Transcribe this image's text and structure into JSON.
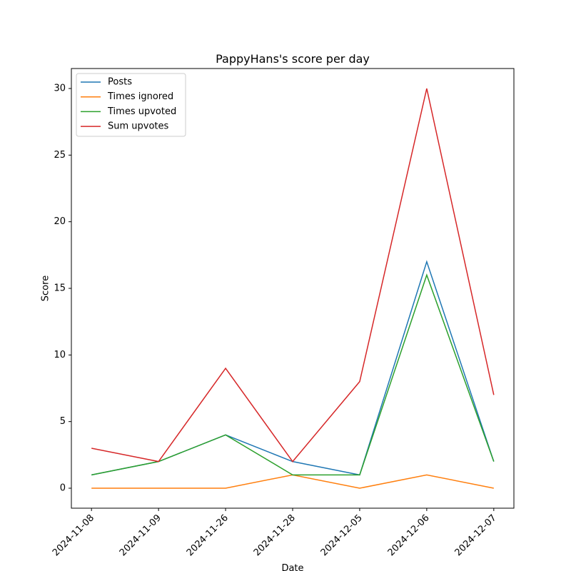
{
  "chart_data": {
    "type": "line",
    "title": "PappyHans's score per day",
    "xlabel": "Date",
    "ylabel": "Score",
    "categories": [
      "2024-11-08",
      "2024-11-09",
      "2024-11-26",
      "2024-11-28",
      "2024-12-05",
      "2024-12-06",
      "2024-12-07"
    ],
    "series": [
      {
        "name": "Posts",
        "color": "#1f77b4",
        "values": [
          1,
          2,
          4,
          2,
          1,
          17,
          2
        ]
      },
      {
        "name": "Times ignored",
        "color": "#ff7f0e",
        "values": [
          0,
          0,
          0,
          1,
          0,
          1,
          0
        ]
      },
      {
        "name": "Times upvoted",
        "color": "#2ca02c",
        "values": [
          1,
          2,
          4,
          1,
          1,
          16,
          2
        ]
      },
      {
        "name": "Sum upvotes",
        "color": "#d62728",
        "values": [
          3,
          2,
          9,
          2,
          8,
          30,
          7
        ]
      }
    ],
    "ylim": [
      -1.5,
      31.5
    ],
    "yticks": [
      0,
      5,
      10,
      15,
      20,
      25,
      30
    ],
    "legend": "upper left"
  }
}
